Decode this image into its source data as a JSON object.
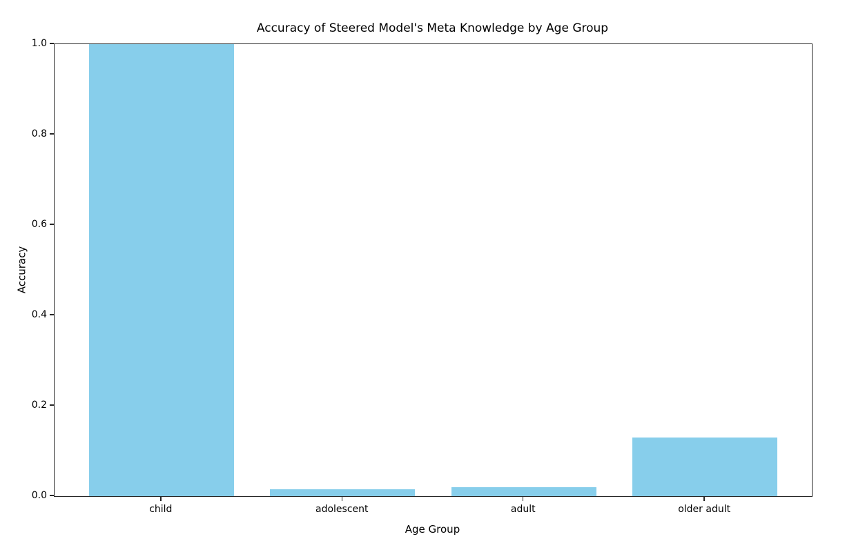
{
  "chart_data": {
    "type": "bar",
    "title": "Accuracy of Steered Model's Meta Knowledge by Age Group",
    "xlabel": "Age Group",
    "ylabel": "Accuracy",
    "categories": [
      "child",
      "adolescent",
      "adult",
      "older adult"
    ],
    "values": [
      1.0,
      0.015,
      0.02,
      0.13
    ],
    "ylim": [
      0.0,
      1.0
    ],
    "yticks": [
      0.0,
      0.2,
      0.4,
      0.6,
      0.8,
      1.0
    ],
    "ytick_labels": [
      "0.0",
      "0.2",
      "0.4",
      "0.6",
      "0.8",
      "1.0"
    ],
    "xlim": [
      -0.59,
      3.59
    ],
    "bar_width": 0.8,
    "bar_color": "#87CEEB",
    "grid": false,
    "legend_position": "none"
  },
  "colors": {
    "background": "#ffffff",
    "spine": "#262626",
    "text": "#000000",
    "bar": "#87CEEB"
  }
}
